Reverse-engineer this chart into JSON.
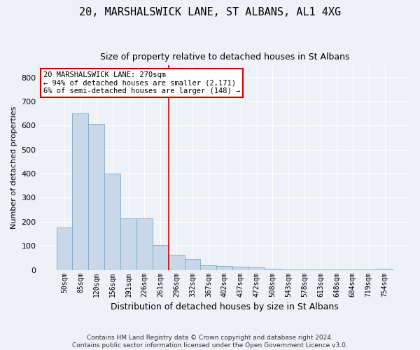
{
  "title": "20, MARSHALSWICK LANE, ST ALBANS, AL1 4XG",
  "subtitle": "Size of property relative to detached houses in St Albans",
  "xlabel": "Distribution of detached houses by size in St Albans",
  "ylabel": "Number of detached properties",
  "bar_color": "#c8d8e8",
  "bar_edge_color": "#7baac8",
  "categories": [
    "50sqm",
    "85sqm",
    "120sqm",
    "156sqm",
    "191sqm",
    "226sqm",
    "261sqm",
    "296sqm",
    "332sqm",
    "367sqm",
    "402sqm",
    "437sqm",
    "472sqm",
    "508sqm",
    "543sqm",
    "578sqm",
    "613sqm",
    "648sqm",
    "684sqm",
    "719sqm",
    "754sqm"
  ],
  "values": [
    175,
    650,
    608,
    400,
    215,
    215,
    105,
    62,
    45,
    18,
    15,
    13,
    10,
    5,
    3,
    3,
    3,
    3,
    1,
    1,
    5
  ],
  "ylim": [
    0,
    850
  ],
  "yticks": [
    0,
    100,
    200,
    300,
    400,
    500,
    600,
    700,
    800
  ],
  "vline_x": 6.5,
  "vline_color": "#cc0000",
  "annotation_text": "20 MARSHALSWICK LANE: 270sqm\n← 94% of detached houses are smaller (2,171)\n6% of semi-detached houses are larger (148) →",
  "annotation_box_color": "#ffffff",
  "annotation_box_edge": "#cc0000",
  "footer": "Contains HM Land Registry data © Crown copyright and database right 2024.\nContains public sector information licensed under the Open Government Licence v3.0.",
  "bg_color": "#eef2f7",
  "grid_color": "#ffffff",
  "title_fontsize": 11,
  "subtitle_fontsize": 9,
  "ylabel_fontsize": 8,
  "xlabel_fontsize": 9
}
